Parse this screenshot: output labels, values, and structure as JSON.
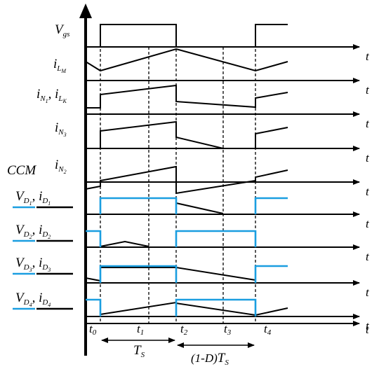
{
  "signals": [
    {
      "id": "vgs",
      "main": "V",
      "sub": "gs"
    },
    {
      "id": "ilm",
      "main": "i",
      "sub": "L",
      "subsub": "M"
    },
    {
      "id": "in1",
      "main": "i",
      "sub": "N",
      "subsub": "1",
      "sep": ", ",
      "main2": "i",
      "sub2": "L",
      "subsub2": "K"
    },
    {
      "id": "in3",
      "main": "i",
      "sub": "N",
      "subsub": "3"
    },
    {
      "id": "in2",
      "main": "i",
      "sub": "N",
      "subsub": "2"
    },
    {
      "id": "d1",
      "main": "V",
      "sub": "D",
      "subsub": "1",
      "sep": ", ",
      "main2": "i",
      "sub2": "D",
      "subsub2": "1"
    },
    {
      "id": "d2",
      "main": "V",
      "sub": "D",
      "subsub": "2",
      "sep": ", ",
      "main2": "i",
      "sub2": "D",
      "subsub2": "2"
    },
    {
      "id": "d3",
      "main": "V",
      "sub": "D",
      "subsub": "3",
      "sep": ", ",
      "main2": "i",
      "sub2": "D",
      "subsub2": "3"
    },
    {
      "id": "d4",
      "main": "V",
      "sub": "D",
      "subsub": "4",
      "sep": ", ",
      "main2": "i",
      "sub2": "D",
      "subsub2": "4"
    }
  ],
  "mode_label": "CCM",
  "axis_label": "t",
  "time_markers": [
    {
      "main": "t",
      "sub": "0"
    },
    {
      "main": "t",
      "sub": "1"
    },
    {
      "main": "t",
      "sub": "2"
    },
    {
      "main": "t",
      "sub": "3"
    },
    {
      "main": "t",
      "sub": "4"
    }
  ],
  "period_label": {
    "main": "T",
    "sub": "S"
  },
  "off_period_label": {
    "prefix": "(1-D)",
    "main": "T",
    "sub": "S"
  },
  "colors": {
    "voltage": "#1a9ee0",
    "trace": "#000000"
  }
}
